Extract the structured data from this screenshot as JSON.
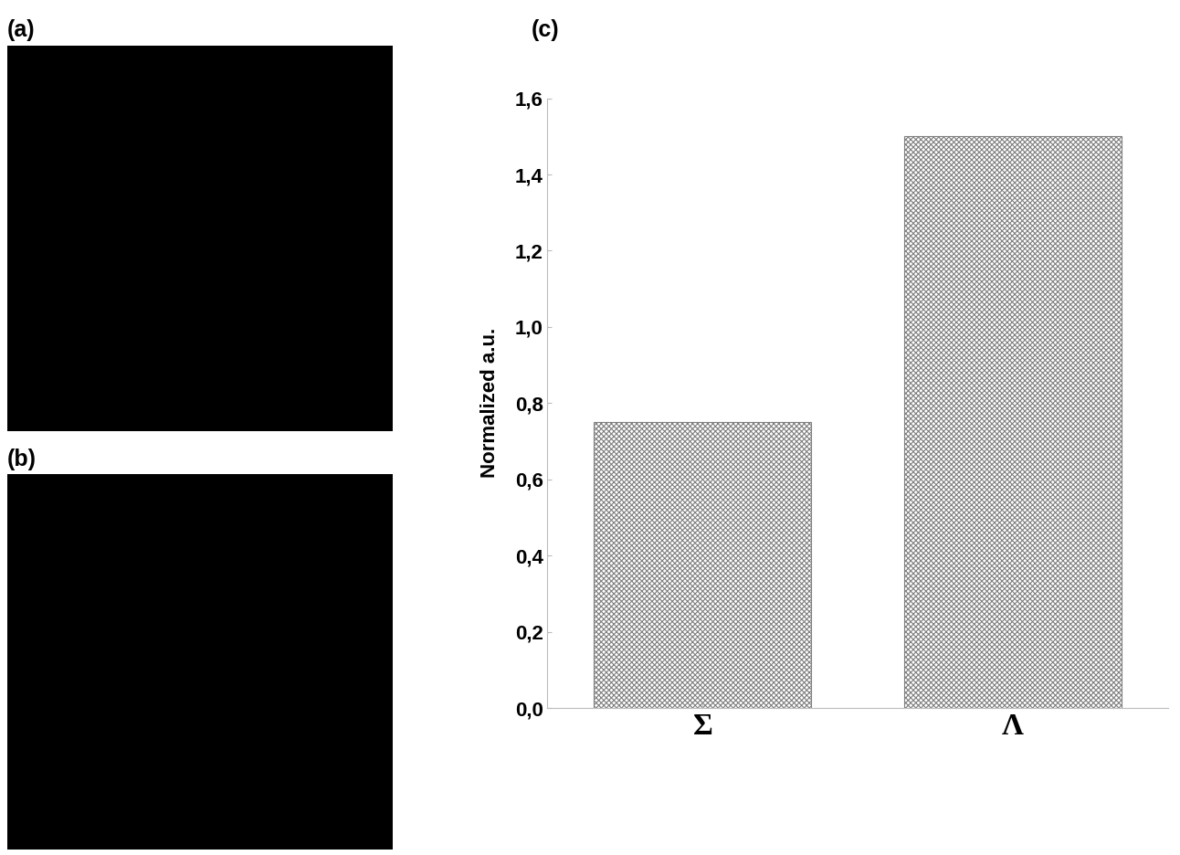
{
  "panel_labels": [
    "(a)",
    "(b)",
    "(c)"
  ],
  "chart_data": {
    "type": "bar",
    "categories": [
      "Σ",
      "Λ"
    ],
    "values": [
      0.75,
      1.5
    ],
    "ylabel": "Normalized a.u.",
    "color": "#7f7f7f",
    "ylim": [
      0,
      1.6
    ],
    "yticks": [
      {
        "value": 0.0,
        "label": "0,0"
      },
      {
        "value": 0.2,
        "label": "0,2"
      },
      {
        "value": 0.4,
        "label": "0,4"
      },
      {
        "value": 0.6,
        "label": "0,6"
      },
      {
        "value": 0.8,
        "label": "0,8"
      },
      {
        "value": 1.0,
        "label": "1,0"
      },
      {
        "value": 1.2,
        "label": "1,2"
      },
      {
        "value": 1.4,
        "label": "1,4"
      },
      {
        "value": 1.6,
        "label": "1,6"
      }
    ],
    "grid": false
  }
}
